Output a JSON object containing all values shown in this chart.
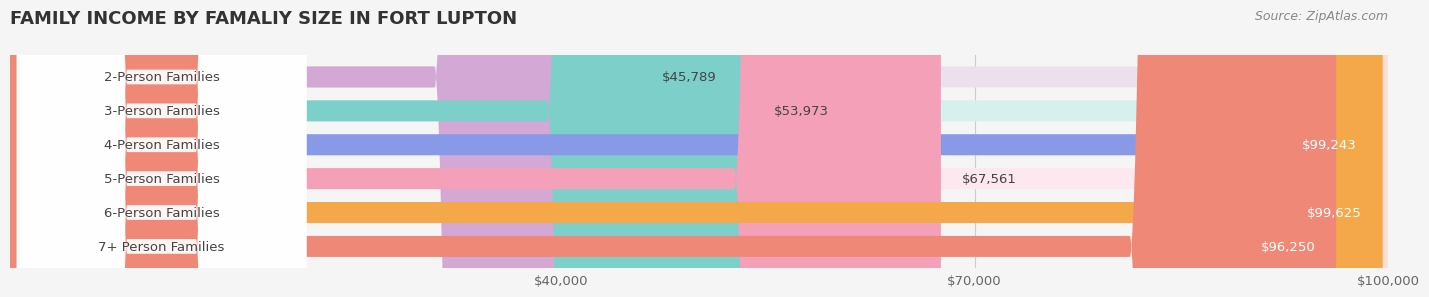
{
  "title": "FAMILY INCOME BY FAMALIY SIZE IN FORT LUPTON",
  "source": "Source: ZipAtlas.com",
  "categories": [
    "2-Person Families",
    "3-Person Families",
    "4-Person Families",
    "5-Person Families",
    "6-Person Families",
    "7+ Person Families"
  ],
  "values": [
    45789,
    53973,
    99243,
    67561,
    99625,
    96250
  ],
  "bar_colors": [
    "#d4a8d4",
    "#7dcfca",
    "#8899e8",
    "#f4a0b8",
    "#f5a84a",
    "#f08878"
  ],
  "bar_bg_colors": [
    "#ede0ed",
    "#d6f0ee",
    "#dde2f7",
    "#fde8ef",
    "#fde8cc",
    "#fce0d8"
  ],
  "label_colors": [
    "#555555",
    "#555555",
    "#ffffff",
    "#555555",
    "#ffffff",
    "#ffffff"
  ],
  "xmin": 0,
  "xmax": 100000,
  "xticks": [
    0,
    40000,
    70000,
    100000
  ],
  "xtick_labels": [
    "",
    "$40,000",
    "$70,000",
    "$100,000"
  ],
  "background_color": "#f5f5f5",
  "bar_height": 0.62,
  "title_fontsize": 13,
  "label_fontsize": 9.5,
  "value_fontsize": 9.5,
  "source_fontsize": 9
}
